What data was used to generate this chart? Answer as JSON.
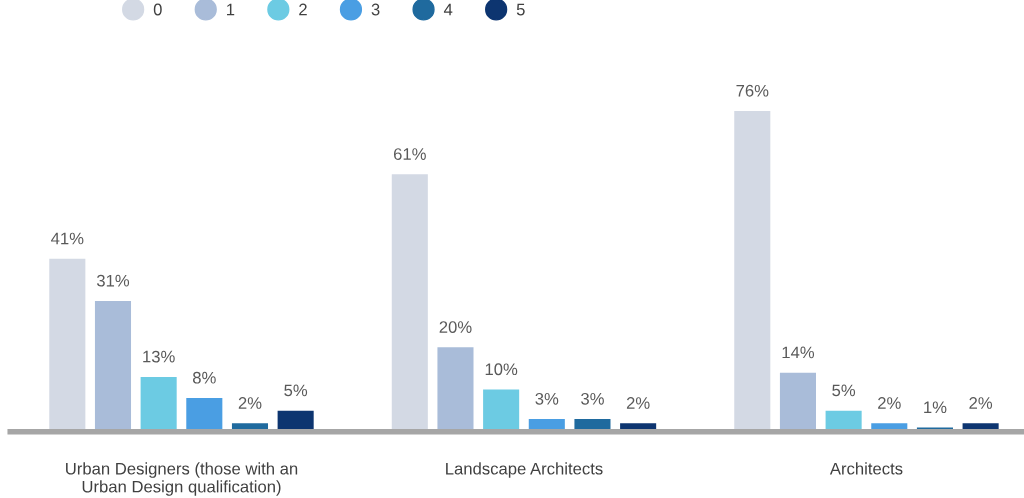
{
  "chart_data": {
    "type": "bar",
    "categories": [
      "Urban Designers (those with an\nUrban Design qualification)",
      "Landscape Architects",
      "Architects"
    ],
    "series": [
      {
        "name": "0",
        "color": "#d3d9e4",
        "values": [
          41,
          61,
          76
        ],
        "value_labels": [
          "41%",
          "61%",
          "76%"
        ]
      },
      {
        "name": "1",
        "color": "#a9bcd9",
        "values": [
          31,
          20,
          14
        ],
        "value_labels": [
          "31%",
          "20%",
          "14%"
        ]
      },
      {
        "name": "2",
        "color": "#6ccbe3",
        "values": [
          13,
          10,
          5
        ],
        "value_labels": [
          "13%",
          "10%",
          "5%"
        ]
      },
      {
        "name": "3",
        "color": "#4a9ee3",
        "values": [
          8,
          3,
          2
        ],
        "value_labels": [
          "8%",
          "3%",
          "2%"
        ]
      },
      {
        "name": "4",
        "color": "#1f6a9e",
        "values": [
          2,
          3,
          1
        ],
        "value_labels": [
          "2%",
          "3%",
          "1%"
        ]
      },
      {
        "name": "5",
        "color": "#0d3570",
        "values": [
          5,
          2,
          2
        ],
        "value_labels": [
          "5%",
          "2%",
          "2%"
        ]
      }
    ],
    "tick_labels": "x",
    "legend": "top left",
    "grid": false,
    "marker": "circle"
  }
}
